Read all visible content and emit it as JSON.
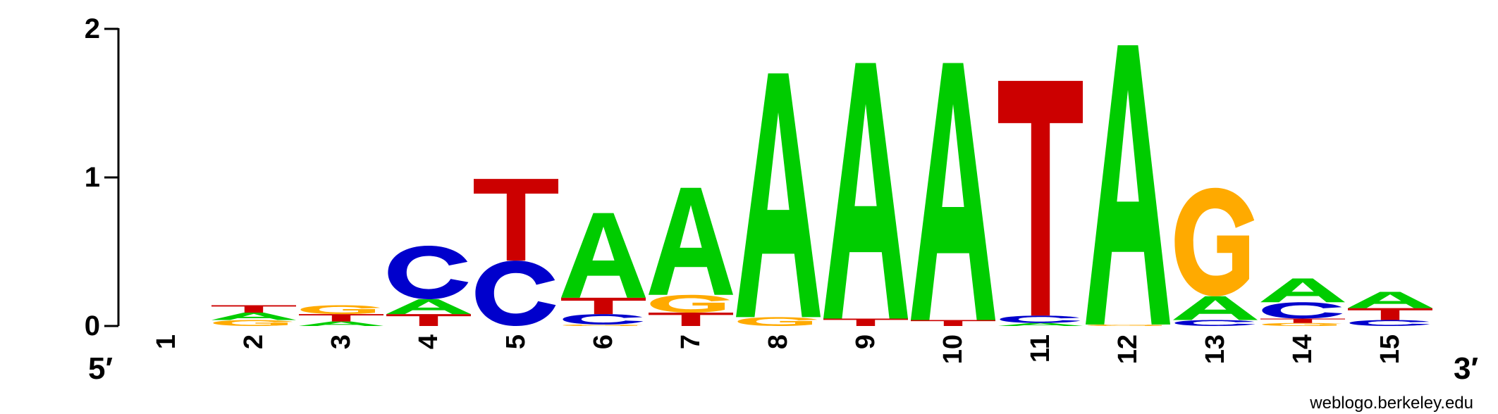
{
  "chart_data": {
    "type": "sequence_logo",
    "title": "",
    "xlabel": "",
    "ylabel": "",
    "ylim": [
      0,
      2
    ],
    "y_ticks": [
      "0",
      "1",
      "2"
    ],
    "end_labels": {
      "left": "5′",
      "right": "3′"
    },
    "credit": "weblogo.berkeley.edu",
    "colors": {
      "A": "#00cc00",
      "C": "#0000cc",
      "G": "#ffaa00",
      "T": "#cc0000"
    },
    "positions": [
      {
        "label": "1",
        "letters": []
      },
      {
        "label": "2",
        "letters": [
          {
            "base": "G",
            "height": 0.04
          },
          {
            "base": "A",
            "height": 0.05
          },
          {
            "base": "T",
            "height": 0.05
          }
        ]
      },
      {
        "label": "3",
        "letters": [
          {
            "base": "A",
            "height": 0.03
          },
          {
            "base": "T",
            "height": 0.05
          },
          {
            "base": "G",
            "height": 0.06
          }
        ]
      },
      {
        "label": "4",
        "letters": [
          {
            "base": "T",
            "height": 0.08
          },
          {
            "base": "A",
            "height": 0.1
          },
          {
            "base": "C",
            "height": 0.36
          }
        ]
      },
      {
        "label": "5",
        "letters": [
          {
            "base": "C",
            "height": 0.44
          },
          {
            "base": "T",
            "height": 0.55
          }
        ]
      },
      {
        "label": "6",
        "letters": [
          {
            "base": "G",
            "height": 0.01
          },
          {
            "base": "C",
            "height": 0.07
          },
          {
            "base": "T",
            "height": 0.11
          },
          {
            "base": "A",
            "height": 0.57
          }
        ]
      },
      {
        "label": "7",
        "letters": [
          {
            "base": "T",
            "height": 0.09
          },
          {
            "base": "G",
            "height": 0.12
          },
          {
            "base": "A",
            "height": 0.72
          }
        ]
      },
      {
        "label": "8",
        "letters": [
          {
            "base": "G",
            "height": 0.06
          },
          {
            "base": "A",
            "height": 1.64
          }
        ]
      },
      {
        "label": "9",
        "letters": [
          {
            "base": "T",
            "height": 0.05
          },
          {
            "base": "A",
            "height": 1.72
          }
        ]
      },
      {
        "label": "10",
        "letters": [
          {
            "base": "T",
            "height": 0.04
          },
          {
            "base": "A",
            "height": 1.73
          }
        ]
      },
      {
        "label": "11",
        "letters": [
          {
            "base": "A",
            "height": 0.02
          },
          {
            "base": "C",
            "height": 0.05
          },
          {
            "base": "T",
            "height": 1.58
          }
        ]
      },
      {
        "label": "12",
        "letters": [
          {
            "base": "G",
            "height": 0.01
          },
          {
            "base": "A",
            "height": 1.88
          }
        ]
      },
      {
        "label": "13",
        "letters": [
          {
            "base": "C",
            "height": 0.04
          },
          {
            "base": "A",
            "height": 0.16
          },
          {
            "base": "G",
            "height": 0.73
          }
        ]
      },
      {
        "label": "14",
        "letters": [
          {
            "base": "G",
            "height": 0.02
          },
          {
            "base": "T",
            "height": 0.03
          },
          {
            "base": "C",
            "height": 0.11
          },
          {
            "base": "A",
            "height": 0.16
          }
        ]
      },
      {
        "label": "15",
        "letters": [
          {
            "base": "C",
            "height": 0.04
          },
          {
            "base": "T",
            "height": 0.08
          },
          {
            "base": "A",
            "height": 0.11
          }
        ]
      }
    ]
  }
}
